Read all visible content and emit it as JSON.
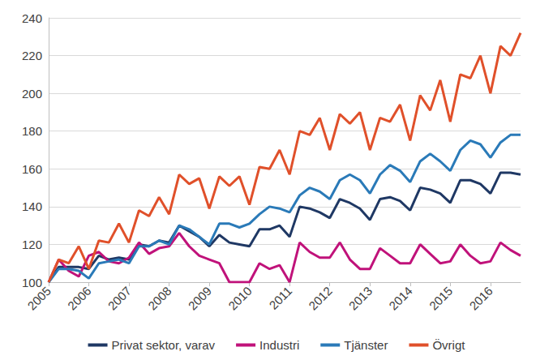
{
  "chart_data": {
    "type": "line",
    "categories": [
      "2005",
      null,
      null,
      null,
      "2006",
      null,
      null,
      null,
      "2007",
      null,
      null,
      null,
      "2008",
      null,
      null,
      null,
      "2009",
      null,
      null,
      null,
      "2010",
      null,
      null,
      null,
      "2011",
      null,
      null,
      null,
      "2012",
      null,
      null,
      null,
      "2013",
      null,
      null,
      null,
      "2014",
      null,
      null,
      null,
      "2015",
      null,
      null,
      null,
      "2016",
      null,
      null,
      null
    ],
    "series": [
      {
        "name": "Privat sektor, varav",
        "color": "#1f3864",
        "values": [
          100,
          108,
          108,
          108,
          107,
          114,
          112,
          113,
          112,
          120,
          119,
          122,
          121,
          130,
          127,
          124,
          119,
          125,
          121,
          120,
          119,
          128,
          128,
          130,
          124,
          140,
          139,
          137,
          134,
          144,
          142,
          139,
          133,
          144,
          145,
          143,
          138,
          150,
          149,
          147,
          142,
          154,
          154,
          152,
          147,
          158,
          158,
          157
        ]
      },
      {
        "name": "Industri",
        "color": "#c0127a",
        "values": [
          100,
          112,
          106,
          103,
          114,
          116,
          111,
          110,
          113,
          121,
          115,
          118,
          119,
          126,
          119,
          114,
          112,
          110,
          100,
          100,
          100,
          110,
          107,
          109,
          100,
          121,
          116,
          113,
          113,
          121,
          112,
          107,
          107,
          118,
          114,
          110,
          110,
          120,
          115,
          110,
          111,
          120,
          114,
          110,
          111,
          121,
          117,
          114
        ]
      },
      {
        "name": "Tjänster",
        "color": "#2a7ab8",
        "values": [
          100,
          107,
          107,
          106,
          102,
          110,
          111,
          112,
          110,
          119,
          119,
          122,
          120,
          130,
          128,
          124,
          120,
          131,
          131,
          129,
          131,
          136,
          140,
          139,
          137,
          146,
          150,
          148,
          144,
          154,
          157,
          154,
          147,
          157,
          162,
          159,
          153,
          164,
          168,
          164,
          159,
          170,
          175,
          173,
          166,
          174,
          178,
          178
        ]
      },
      {
        "name": "Övrigt",
        "color": "#e0502a",
        "values": [
          100,
          112,
          110,
          119,
          107,
          122,
          121,
          131,
          121,
          138,
          135,
          145,
          136,
          157,
          152,
          155,
          139,
          156,
          151,
          156,
          141,
          161,
          160,
          170,
          157,
          180,
          178,
          187,
          170,
          189,
          184,
          190,
          170,
          187,
          185,
          194,
          175,
          199,
          191,
          207,
          185,
          210,
          208,
          220,
          200,
          225,
          220,
          232
        ]
      }
    ],
    "ylim": [
      100,
      240
    ],
    "yticks": [
      100,
      120,
      140,
      160,
      180,
      200,
      220,
      240
    ],
    "grid": true,
    "legend": "bottom"
  }
}
